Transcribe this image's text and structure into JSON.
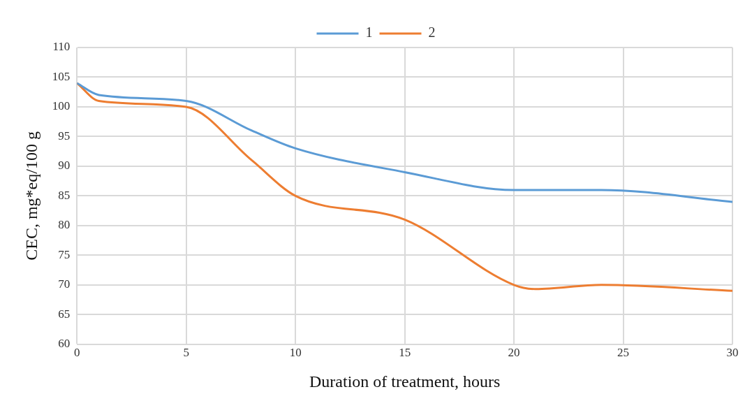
{
  "chart_data": {
    "type": "line",
    "xlabel": "Duration of treatment, hours",
    "ylabel": "CEC, mg*eq/100 g",
    "x": [
      0,
      1,
      5,
      8,
      10,
      15,
      20,
      21,
      24,
      30
    ],
    "series": [
      {
        "name": "1",
        "color": "#5b9bd5",
        "values": [
          104,
          102,
          101,
          96,
          93,
          89,
          86,
          86,
          86,
          84
        ]
      },
      {
        "name": "2",
        "color": "#ed7d31",
        "values": [
          104,
          101,
          100,
          91,
          85,
          81,
          70,
          69.3,
          70,
          69
        ]
      }
    ],
    "xlim": [
      0,
      30
    ],
    "xticks": [
      0,
      5,
      10,
      15,
      20,
      25,
      30
    ],
    "ylim": [
      60,
      110
    ],
    "yticks": [
      60,
      65,
      70,
      75,
      80,
      85,
      90,
      95,
      100,
      105,
      110
    ],
    "grid": true,
    "legend": "top",
    "marker": "none",
    "line_style": "solid"
  }
}
